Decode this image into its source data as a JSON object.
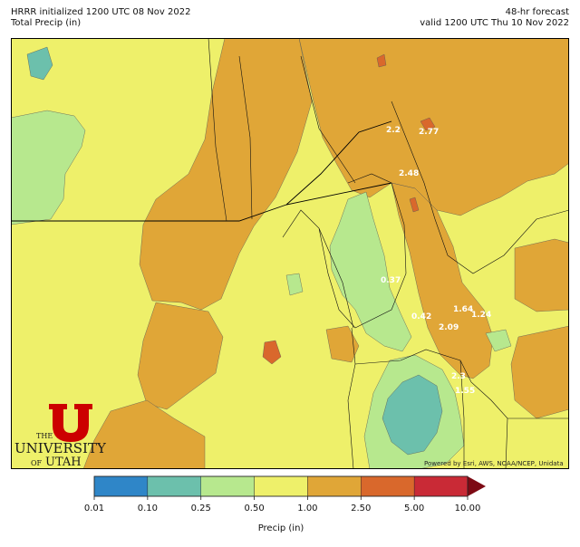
{
  "header": {
    "init_line": "HRRR initialized 1200 UTC 08 Nov 2022",
    "field_line": "Total Precip (in)",
    "forecast_line": "48-hr forecast",
    "valid_line": "valid 1200 UTC Thu 10 Nov 2022"
  },
  "map": {
    "credit": "Powered by Esri, AWS, NOAA/NCEP, Unidata",
    "values": [
      "2.2",
      "2.77",
      "2.48",
      "0.37",
      "1.64",
      "1.24",
      "0.42",
      "2.09",
      "2.3",
      "1.55"
    ]
  },
  "logo": {
    "the": "THE",
    "university": "UNIVERSITY",
    "of": "OF",
    "utah": "UTAH"
  },
  "colorbar": {
    "title": "Precip (in)",
    "ticks": [
      "0.01",
      "0.10",
      "0.25",
      "0.50",
      "1.00",
      "2.50",
      "5.00",
      "10.00"
    ],
    "colors": [
      "#2f86c8",
      "#6cc0ac",
      "#b7e88e",
      "#eef06a",
      "#e0a637",
      "#d9682c",
      "#c92a36",
      "#7d0a14"
    ]
  }
}
